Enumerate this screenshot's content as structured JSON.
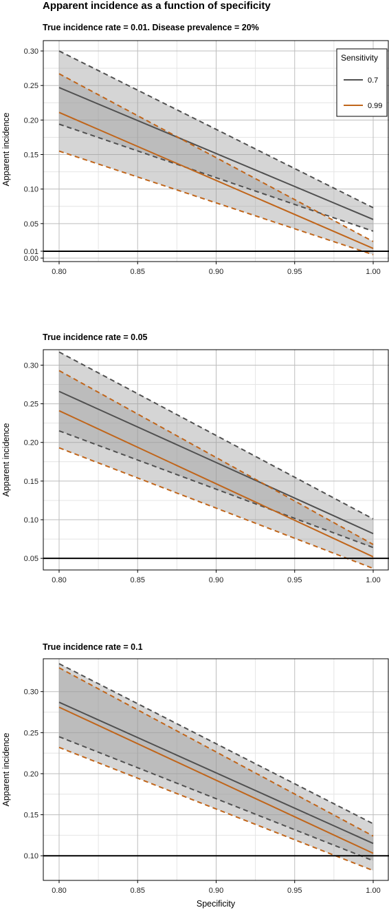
{
  "figure": {
    "title": "Apparent incidence as a function of specificity",
    "xlabel": "Specificity",
    "ylabel": "Apparent incidence"
  },
  "legend": {
    "title": "Sensitivity",
    "position": "top-right",
    "entries": [
      {
        "label": "0.7",
        "color": "#505050"
      },
      {
        "label": "0.99",
        "color": "#c0651a"
      }
    ]
  },
  "colors": {
    "series_0.7": "#505050",
    "series_0.99": "#c0651a",
    "band_fill": "#9a9a9a",
    "reference_line": "#000000",
    "grid_major": "#bdbdbd",
    "grid_minor": "#e4e4e4"
  },
  "chart_data": [
    {
      "type": "line",
      "subtitle": "True incidence rate = 0.01. Disease prevalence = 20%",
      "xlim": [
        0.8,
        1.0
      ],
      "ylim": [
        -0.005,
        0.315
      ],
      "xticks": [
        "0.80",
        "0.85",
        "0.90",
        "0.95",
        "1.00"
      ],
      "yticks": [
        "0.00",
        "0.01",
        "0.05",
        "0.10",
        "0.15",
        "0.20",
        "0.25",
        "0.30"
      ],
      "hline": 0.01,
      "grid": true,
      "series": [
        {
          "name": "0.7",
          "x": [
            0.8,
            1.0
          ],
          "y": [
            0.247,
            0.056
          ],
          "lower": [
            0.194,
            0.039
          ],
          "upper": [
            0.3,
            0.073
          ]
        },
        {
          "name": "0.99",
          "x": [
            0.8,
            1.0
          ],
          "y": [
            0.211,
            0.014
          ],
          "lower": [
            0.155,
            0.005
          ],
          "upper": [
            0.267,
            0.024
          ]
        }
      ]
    },
    {
      "type": "line",
      "subtitle": "True incidence rate = 0.05",
      "xlim": [
        0.8,
        1.0
      ],
      "ylim": [
        0.035,
        0.32
      ],
      "xticks": [
        "0.80",
        "0.85",
        "0.90",
        "0.95",
        "1.00"
      ],
      "yticks": [
        "0.05",
        "0.10",
        "0.15",
        "0.20",
        "0.25",
        "0.30"
      ],
      "hline": 0.05,
      "grid": true,
      "series": [
        {
          "name": "0.7",
          "x": [
            0.8,
            1.0
          ],
          "y": [
            0.266,
            0.082
          ],
          "lower": [
            0.215,
            0.064
          ],
          "upper": [
            0.317,
            0.101
          ]
        },
        {
          "name": "0.99",
          "x": [
            0.8,
            1.0
          ],
          "y": [
            0.241,
            0.052
          ],
          "lower": [
            0.193,
            0.037
          ],
          "upper": [
            0.293,
            0.068
          ]
        }
      ]
    },
    {
      "type": "line",
      "subtitle": "True incidence rate = 0.1",
      "xlim": [
        0.8,
        1.0
      ],
      "ylim": [
        0.07,
        0.34
      ],
      "xticks": [
        "0.80",
        "0.85",
        "0.90",
        "0.95",
        "1.00"
      ],
      "yticks": [
        "0.10",
        "0.15",
        "0.20",
        "0.25",
        "0.30"
      ],
      "hline": 0.1,
      "grid": true,
      "series": [
        {
          "name": "0.7",
          "x": [
            0.8,
            1.0
          ],
          "y": [
            0.287,
            0.115
          ],
          "lower": [
            0.245,
            0.094
          ],
          "upper": [
            0.334,
            0.139
          ]
        },
        {
          "name": "0.99",
          "x": [
            0.8,
            1.0
          ],
          "y": [
            0.281,
            0.103
          ],
          "lower": [
            0.232,
            0.082
          ],
          "upper": [
            0.329,
            0.124
          ]
        }
      ]
    }
  ]
}
